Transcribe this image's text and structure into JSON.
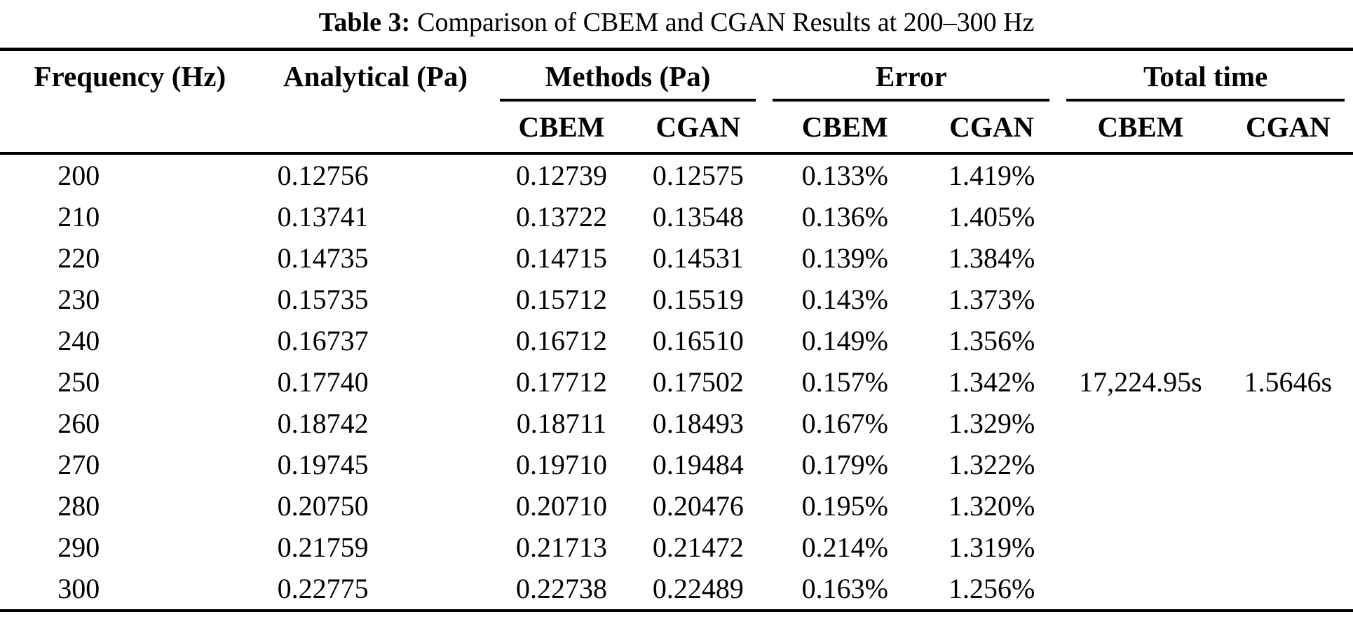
{
  "caption": {
    "label": "Table 3:",
    "text": "Comparison of CBEM and CGAN Results at 200–300 Hz"
  },
  "table": {
    "headers": {
      "frequency": "Frequency (Hz)",
      "analytical": "Analytical (Pa)",
      "groups": [
        {
          "label": "Methods (Pa)",
          "sub": [
            "CBEM",
            "CGAN"
          ]
        },
        {
          "label": "Error",
          "sub": [
            "CBEM",
            "CGAN"
          ]
        },
        {
          "label": "Total time",
          "sub": [
            "CBEM",
            "CGAN"
          ]
        }
      ]
    },
    "rows": [
      [
        "200",
        "0.12756",
        "0.12739",
        "0.12575",
        "0.133%",
        "1.419%",
        "",
        ""
      ],
      [
        "210",
        "0.13741",
        "0.13722",
        "0.13548",
        "0.136%",
        "1.405%",
        "",
        ""
      ],
      [
        "220",
        "0.14735",
        "0.14715",
        "0.14531",
        "0.139%",
        "1.384%",
        "",
        ""
      ],
      [
        "230",
        "0.15735",
        "0.15712",
        "0.15519",
        "0.143%",
        "1.373%",
        "",
        ""
      ],
      [
        "240",
        "0.16737",
        "0.16712",
        "0.16510",
        "0.149%",
        "1.356%",
        "",
        ""
      ],
      [
        "250",
        "0.17740",
        "0.17712",
        "0.17502",
        "0.157%",
        "1.342%",
        "17,224.95s",
        "1.5646s"
      ],
      [
        "260",
        "0.18742",
        "0.18711",
        "0.18493",
        "0.167%",
        "1.329%",
        "",
        ""
      ],
      [
        "270",
        "0.19745",
        "0.19710",
        "0.19484",
        "0.179%",
        "1.322%",
        "",
        ""
      ],
      [
        "280",
        "0.20750",
        "0.20710",
        "0.20476",
        "0.195%",
        "1.320%",
        "",
        ""
      ],
      [
        "290",
        "0.21759",
        "0.21713",
        "0.21472",
        "0.214%",
        "1.319%",
        "",
        ""
      ],
      [
        "300",
        "0.22775",
        "0.22738",
        "0.22489",
        "0.163%",
        "1.256%",
        "",
        ""
      ]
    ],
    "colors": {
      "text": "#000000",
      "background": "#ffffff",
      "rule": "#000000"
    }
  }
}
